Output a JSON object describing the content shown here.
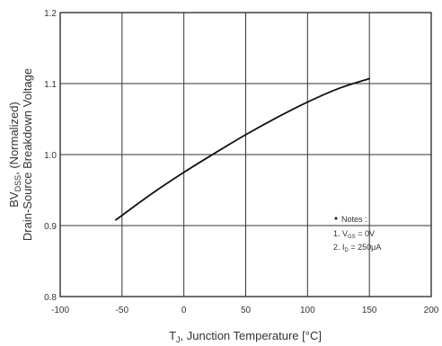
{
  "chart_data": {
    "type": "line",
    "x_tick_labels": [
      "-100",
      "-50",
      "0",
      "50",
      "100",
      "150",
      "200"
    ],
    "y_tick_labels": [
      "0.8",
      "0.9",
      "1.0",
      "1.1",
      "1.2"
    ],
    "xlim": [
      -100,
      200
    ],
    "ylim": [
      0.8,
      1.2
    ],
    "x_ticks": [
      -100,
      -50,
      0,
      50,
      100,
      150,
      200
    ],
    "y_ticks": [
      0.8,
      0.9,
      1.0,
      1.1,
      1.2
    ],
    "grid": true,
    "xlabel": {
      "prefix": "T",
      "subscript": "J",
      "suffix": ", Junction Temperature [°C]"
    },
    "ylabel": {
      "line1_prefix": "BV",
      "line1_subscript": "DSS",
      "line1_suffix": ", (Normalized)",
      "line2": "Drain-Source Breakdown Voltage"
    },
    "series": [
      {
        "x": [
          -55,
          -25,
          0,
          25,
          50,
          75,
          100,
          125,
          150
        ],
        "y": [
          0.908,
          0.946,
          0.975,
          1.002,
          1.028,
          1.052,
          1.074,
          1.093,
          1.107
        ]
      }
    ],
    "notes": {
      "header": "Notes :",
      "line1_prefix": "1. V",
      "line1_subscript": "GS",
      "line1_suffix": " = 0V",
      "line2_prefix": "2. I",
      "line2_subscript": "D",
      "line2_suffix": " = 250μA"
    }
  }
}
